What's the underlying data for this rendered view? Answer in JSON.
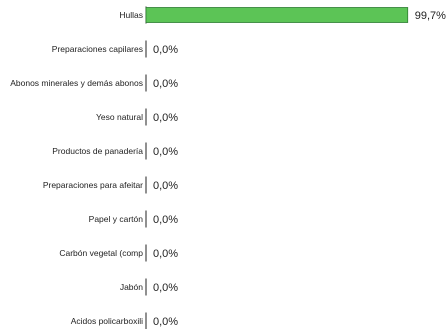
{
  "chart_data": {
    "type": "bar",
    "orientation": "horizontal",
    "categories": [
      "Hullas",
      "Preparaciones capilares",
      "Abonos minerales y demás abonos",
      "Yeso natural",
      "Productos de panadería",
      "Preparaciones para afeitar",
      "Papel y cartón",
      "Carbón vegetal (comp",
      "Jabón",
      "Acidos policarboxili"
    ],
    "values": [
      99.7,
      0.0,
      0.0,
      0.0,
      0.0,
      0.0,
      0.0,
      0.0,
      0.0,
      0.0
    ],
    "value_labels": [
      "99,7%",
      "0,0%",
      "0,0%",
      "0,0%",
      "0,0%",
      "0,0%",
      "0,0%",
      "0,0%",
      "0,0%",
      "0,0%"
    ],
    "xlim": [
      0,
      100
    ],
    "bar_color": "#5cc456",
    "bar_edge_color": "#2e7d32",
    "grid": false,
    "legend": "none"
  }
}
